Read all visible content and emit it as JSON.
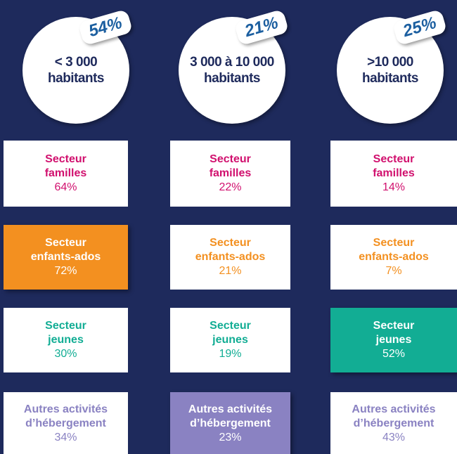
{
  "columns": [
    {
      "badge": "54%",
      "label_lines": [
        "< 3 000",
        "habitants"
      ]
    },
    {
      "badge": "21%",
      "label_lines": [
        "3 000 à 10 000",
        "habitants"
      ]
    },
    {
      "badge": "25%",
      "label_lines": [
        ">10 000",
        "habitants"
      ]
    }
  ],
  "sectors": [
    {
      "title_lines": [
        "Secteur",
        "familles"
      ],
      "color": "#d1106e",
      "values": [
        "64%",
        "22%",
        "14%"
      ]
    },
    {
      "title_lines": [
        "Secteur",
        "enfants-ados"
      ],
      "color": "#f39020",
      "values": [
        "72%",
        "21%",
        "7%"
      ],
      "filled_column": 0
    },
    {
      "title_lines": [
        "Secteur",
        "jeunes"
      ],
      "color": "#12ad94",
      "values": [
        "30%",
        "19%",
        "52%"
      ],
      "filled_column": 2
    },
    {
      "title_lines": [
        "Autres activités",
        "d’hébergement"
      ],
      "color": "#8a82c2",
      "values": [
        "34%",
        "23%",
        "43%"
      ],
      "filled_column": 1
    }
  ]
}
